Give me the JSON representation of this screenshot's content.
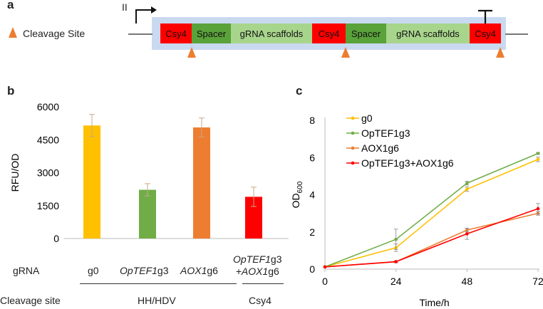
{
  "panel_a": {
    "letter": "a",
    "promoter_label": "II",
    "legend_label": "Cleavage Site",
    "segments": [
      {
        "label": "Csy4",
        "type": "csy4"
      },
      {
        "label": "Spacer",
        "type": "spacer"
      },
      {
        "label": "gRNA scaffolds",
        "type": "scaffold"
      },
      {
        "label": "Csy4",
        "type": "csy4"
      },
      {
        "label": "Spacer",
        "type": "spacer"
      },
      {
        "label": "gRNA scaffolds",
        "type": "scaffold"
      },
      {
        "label": "Csy4",
        "type": "csy4"
      }
    ],
    "colors": {
      "csy4": "#ff0000",
      "spacer": "#5aa23a",
      "scaffold": "#a8d58c",
      "box": "#c9d9f0",
      "cleave": "#ed7d31"
    }
  },
  "panel_b": {
    "letter": "b",
    "row_grna": "gRNA",
    "row_cleavage": "Cleavage site",
    "group_hh": "HH/HDV",
    "group_csy4": "Csy4"
  },
  "panel_c": {
    "letter": "c"
  },
  "chart_data": [
    {
      "type": "bar",
      "ylabel": "RFU/OD",
      "ylim": [
        0,
        6000
      ],
      "yticks": [
        0,
        1500,
        3000,
        4500,
        6000
      ],
      "categories": [
        {
          "main": "g0",
          "suffix": ""
        },
        {
          "main": "OpTEF1",
          "suffix": "g3"
        },
        {
          "main": "AOX1",
          "suffix": "g6"
        },
        {
          "main": "OpTEF1",
          "suffix": "g3",
          "line2_main": "+AOX1",
          "line2_suffix": "g6"
        }
      ],
      "values": [
        5150,
        2220,
        5060,
        1900
      ],
      "errors": [
        500,
        280,
        430,
        440
      ],
      "colors": [
        "#ffc000",
        "#70ad47",
        "#ed7d31",
        "#ff0000"
      ]
    },
    {
      "type": "line",
      "xlabel": "Time/h",
      "ylabel_main": "OD",
      "ylabel_sub": "600",
      "x": [
        0,
        24,
        48,
        72
      ],
      "xlim": [
        0,
        72
      ],
      "ylim": [
        0,
        8
      ],
      "yticks": [
        0,
        2,
        4,
        6,
        8
      ],
      "legend_position": "top-left",
      "series": [
        {
          "name": "g0",
          "values": [
            0.12,
            1.15,
            4.3,
            5.9
          ],
          "errors": [
            0,
            0.2,
            0.12,
            0.12
          ],
          "color": "#ffc000"
        },
        {
          "name": "OpTEF1g3",
          "values": [
            0.12,
            1.6,
            4.62,
            6.22
          ],
          "errors": [
            0,
            0.55,
            0.1,
            0.05
          ],
          "color": "#70ad47"
        },
        {
          "name": "AOX1g6",
          "values": [
            0.12,
            0.4,
            2.1,
            3.0
          ],
          "errors": [
            0,
            0.05,
            0.1,
            0.1
          ],
          "color": "#ed7d31"
        },
        {
          "name": "OpTEF1g3+AOX1g6",
          "values": [
            0.12,
            0.4,
            1.9,
            3.25
          ],
          "errors": [
            0,
            0.05,
            0.3,
            0.28
          ],
          "color": "#ff0000"
        }
      ]
    }
  ]
}
